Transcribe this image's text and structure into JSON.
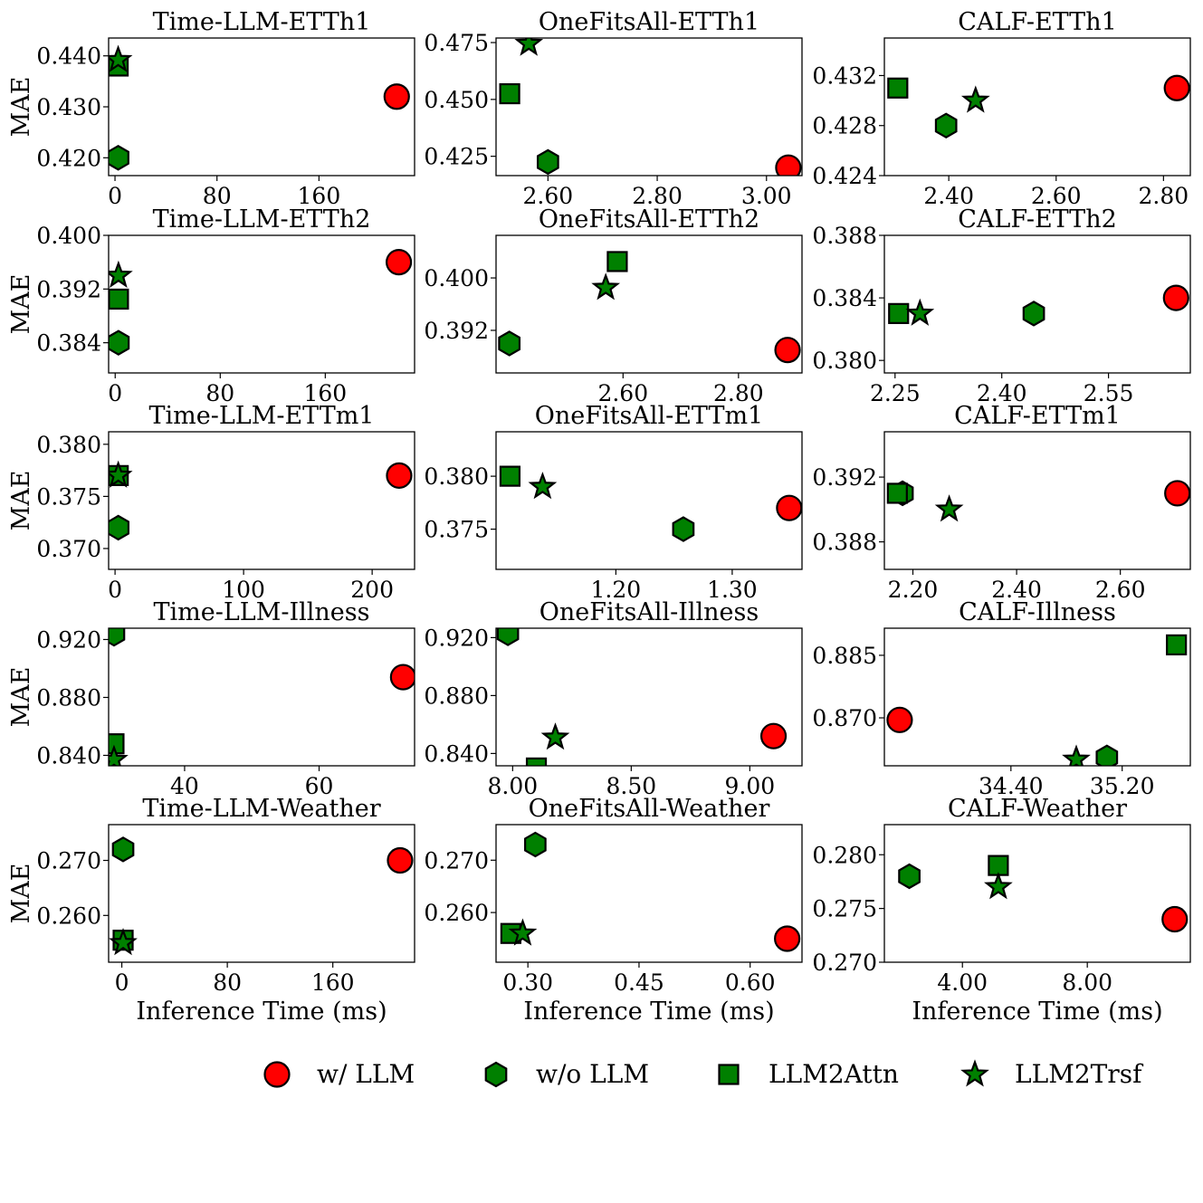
{
  "colors": {
    "with_llm": "#ff0000",
    "without_llm": "#008000",
    "llm2attn": "#008000",
    "llm2trsf": "#008000",
    "edge": "#000000"
  },
  "legend": {
    "placement": "bottom",
    "items": [
      {
        "label": "w/ LLM",
        "marker": "circle"
      },
      {
        "label": "w/o LLM",
        "marker": "hexagon"
      },
      {
        "label": "LLM2Attn",
        "marker": "square"
      },
      {
        "label": "LLM2Trsf",
        "marker": "star"
      }
    ]
  },
  "chart_data": [
    {
      "type": "scatter",
      "title": "Time-LLM-ETTh1",
      "ylabel": "MAE",
      "xlabel": "",
      "xlim": [
        -5,
        235
      ],
      "ylim": [
        0.4165,
        0.4435
      ],
      "xticks": [
        0,
        80,
        160
      ],
      "xtick_labels": [
        "0",
        "80",
        "160"
      ],
      "yticks": [
        0.42,
        0.43,
        0.44
      ],
      "ytick_labels": [
        "0.420",
        "0.430",
        "0.440"
      ],
      "points": [
        {
          "series": "w/ LLM",
          "x": 221,
          "y": 0.432
        },
        {
          "series": "w/o LLM",
          "x": 2.5,
          "y": 0.42
        },
        {
          "series": "LLM2Attn",
          "x": 2.5,
          "y": 0.438
        },
        {
          "series": "LLM2Trsf",
          "x": 2.5,
          "y": 0.4392
        }
      ]
    },
    {
      "type": "scatter",
      "title": "OneFitsAll-ETTh1",
      "ylabel": "",
      "xlabel": "",
      "xlim": [
        2.505,
        3.065
      ],
      "ylim": [
        0.4165,
        0.477
      ],
      "xticks": [
        2.6,
        2.8,
        3.0
      ],
      "xtick_labels": [
        "2.60",
        "2.80",
        "3.00"
      ],
      "yticks": [
        0.425,
        0.45,
        0.475
      ],
      "ytick_labels": [
        "0.425",
        "0.450",
        "0.475"
      ],
      "points": [
        {
          "series": "w/ LLM",
          "x": 3.04,
          "y": 0.42
        },
        {
          "series": "w/o LLM",
          "x": 2.6,
          "y": 0.4225
        },
        {
          "series": "LLM2Attn",
          "x": 2.53,
          "y": 0.4525
        },
        {
          "series": "LLM2Trsf",
          "x": 2.565,
          "y": 0.4745
        }
      ]
    },
    {
      "type": "scatter",
      "title": "CALF-ETTh1",
      "ylabel": "",
      "xlabel": "",
      "xlim": [
        2.28,
        2.85
      ],
      "ylim": [
        0.424,
        0.435
      ],
      "xticks": [
        2.4,
        2.6,
        2.8
      ],
      "xtick_labels": [
        "2.40",
        "2.60",
        "2.80"
      ],
      "yticks": [
        0.424,
        0.428,
        0.432
      ],
      "ytick_labels": [
        "0.424",
        "0.428",
        "0.432"
      ],
      "points": [
        {
          "series": "w/ LLM",
          "x": 2.825,
          "y": 0.431
        },
        {
          "series": "w/o LLM",
          "x": 2.395,
          "y": 0.428
        },
        {
          "series": "LLM2Attn",
          "x": 2.305,
          "y": 0.431
        },
        {
          "series": "LLM2Trsf",
          "x": 2.45,
          "y": 0.43
        }
      ]
    },
    {
      "type": "scatter",
      "title": "Time-LLM-ETTh2",
      "ylabel": "MAE",
      "xlabel": "",
      "xlim": [
        -5,
        228
      ],
      "ylim": [
        0.3795,
        0.4
      ],
      "xticks": [
        0,
        80,
        160
      ],
      "xtick_labels": [
        "0",
        "80",
        "160"
      ],
      "yticks": [
        0.384,
        0.392,
        0.4
      ],
      "ytick_labels": [
        "0.384",
        "0.392",
        "0.400"
      ],
      "points": [
        {
          "series": "w/ LLM",
          "x": 216,
          "y": 0.396
        },
        {
          "series": "w/o LLM",
          "x": 2.5,
          "y": 0.384
        },
        {
          "series": "LLM2Attn",
          "x": 2.5,
          "y": 0.3905
        },
        {
          "series": "LLM2Trsf",
          "x": 2.5,
          "y": 0.394
        }
      ]
    },
    {
      "type": "scatter",
      "title": "OneFitsAll-ETTh2",
      "ylabel": "",
      "xlabel": "",
      "xlim": [
        2.38,
        2.91
      ],
      "ylim": [
        0.3855,
        0.4065
      ],
      "xticks": [
        2.6,
        2.8
      ],
      "xtick_labels": [
        "2.60",
        "2.80"
      ],
      "yticks": [
        0.392,
        0.4
      ],
      "ytick_labels": [
        "0.392",
        "0.400"
      ],
      "points": [
        {
          "series": "w/ LLM",
          "x": 2.885,
          "y": 0.389
        },
        {
          "series": "w/o LLM",
          "x": 2.403,
          "y": 0.39
        },
        {
          "series": "LLM2Attn",
          "x": 2.59,
          "y": 0.4025
        },
        {
          "series": "LLM2Trsf",
          "x": 2.57,
          "y": 0.3985
        }
      ]
    },
    {
      "type": "scatter",
      "title": "CALF-ETTh2",
      "ylabel": "",
      "xlabel": "",
      "xlim": [
        2.235,
        2.665
      ],
      "ylim": [
        0.3792,
        0.388
      ],
      "xticks": [
        2.25,
        2.4,
        2.55
      ],
      "xtick_labels": [
        "2.25",
        "2.40",
        "2.55"
      ],
      "yticks": [
        0.38,
        0.384,
        0.388
      ],
      "ytick_labels": [
        "0.380",
        "0.384",
        "0.388"
      ],
      "points": [
        {
          "series": "w/ LLM",
          "x": 2.645,
          "y": 0.384
        },
        {
          "series": "w/o LLM",
          "x": 2.445,
          "y": 0.383
        },
        {
          "series": "LLM2Attn",
          "x": 2.255,
          "y": 0.383
        },
        {
          "series": "LLM2Trsf",
          "x": 2.285,
          "y": 0.383
        }
      ]
    },
    {
      "type": "scatter",
      "title": "Time-LLM-ETTm1",
      "ylabel": "MAE",
      "xlabel": "",
      "xlim": [
        -5,
        233
      ],
      "ylim": [
        0.368,
        0.3812
      ],
      "xticks": [
        0,
        100,
        200
      ],
      "xtick_labels": [
        "0",
        "100",
        "200"
      ],
      "yticks": [
        0.37,
        0.375,
        0.38
      ],
      "ytick_labels": [
        "0.370",
        "0.375",
        "0.380"
      ],
      "points": [
        {
          "series": "w/ LLM",
          "x": 221,
          "y": 0.377
        },
        {
          "series": "w/o LLM",
          "x": 2.5,
          "y": 0.372
        },
        {
          "series": "LLM2Attn",
          "x": 2.5,
          "y": 0.377
        },
        {
          "series": "LLM2Trsf",
          "x": 2.5,
          "y": 0.377
        }
      ]
    },
    {
      "type": "scatter",
      "title": "OneFitsAll-ETTm1",
      "ylabel": "",
      "xlabel": "",
      "xlim": [
        1.097,
        1.36
      ],
      "ylim": [
        0.3712,
        0.3842
      ],
      "xticks": [
        1.2,
        1.3
      ],
      "xtick_labels": [
        "1.20",
        "1.30"
      ],
      "yticks": [
        0.375,
        0.38
      ],
      "ytick_labels": [
        "0.375",
        "0.380"
      ],
      "points": [
        {
          "series": "w/ LLM",
          "x": 1.349,
          "y": 0.377
        },
        {
          "series": "w/o LLM",
          "x": 1.258,
          "y": 0.375
        },
        {
          "series": "LLM2Attn",
          "x": 1.109,
          "y": 0.38
        },
        {
          "series": "LLM2Trsf",
          "x": 1.137,
          "y": 0.379
        }
      ]
    },
    {
      "type": "scatter",
      "title": "CALF-ETTm1",
      "ylabel": "",
      "xlabel": "",
      "xlim": [
        2.145,
        2.735
      ],
      "ylim": [
        0.3863,
        0.3948
      ],
      "xticks": [
        2.2,
        2.4,
        2.6
      ],
      "xtick_labels": [
        "2.20",
        "2.40",
        "2.60"
      ],
      "yticks": [
        0.388,
        0.392
      ],
      "ytick_labels": [
        "0.388",
        "0.392"
      ],
      "points": [
        {
          "series": "w/ LLM",
          "x": 2.71,
          "y": 0.391
        },
        {
          "series": "w/o LLM",
          "x": 2.18,
          "y": 0.391
        },
        {
          "series": "LLM2Attn",
          "x": 2.17,
          "y": 0.391
        },
        {
          "series": "LLM2Trsf",
          "x": 2.27,
          "y": 0.39
        }
      ]
    },
    {
      "type": "scatter",
      "title": "Time-LLM-Illness",
      "ylabel": "MAE",
      "xlabel": "",
      "xlim": [
        28.7,
        74.2
      ],
      "ylim": [
        0.8328,
        0.9278
      ],
      "xticks": [
        40,
        60
      ],
      "xtick_labels": [
        "40",
        "60"
      ],
      "yticks": [
        0.84,
        0.88,
        0.92
      ],
      "ytick_labels": [
        "0.840",
        "0.880",
        "0.920"
      ],
      "points": [
        {
          "series": "w/ LLM",
          "x": 72.5,
          "y": 0.894
        },
        {
          "series": "w/o LLM",
          "x": 29.5,
          "y": 0.924
        },
        {
          "series": "LLM2Attn",
          "x": 29.5,
          "y": 0.848
        },
        {
          "series": "LLM2Trsf",
          "x": 29.5,
          "y": 0.837
        }
      ]
    },
    {
      "type": "scatter",
      "title": "OneFitsAll-Illness",
      "ylabel": "",
      "xlabel": "",
      "xlim": [
        7.93,
        9.22
      ],
      "ylim": [
        0.8315,
        0.9265
      ],
      "xticks": [
        8.0,
        8.5,
        9.0
      ],
      "xtick_labels": [
        "8.00",
        "8.50",
        "9.00"
      ],
      "yticks": [
        0.84,
        0.88,
        0.92
      ],
      "ytick_labels": [
        "0.840",
        "0.880",
        "0.920"
      ],
      "points": [
        {
          "series": "w/ LLM",
          "x": 9.1,
          "y": 0.852
        },
        {
          "series": "w/o LLM",
          "x": 7.98,
          "y": 0.923
        },
        {
          "series": "LLM2Attn",
          "x": 8.1,
          "y": 0.83
        },
        {
          "series": "LLM2Trsf",
          "x": 8.18,
          "y": 0.851
        }
      ]
    },
    {
      "type": "scatter",
      "title": "CALF-Illness",
      "ylabel": "",
      "xlabel": "",
      "xlim": [
        33.49,
        35.69
      ],
      "ylim": [
        0.8585,
        0.8915
      ],
      "xticks": [
        34.4,
        35.2
      ],
      "xtick_labels": [
        "34.40",
        "35.20"
      ],
      "yticks": [
        0.87,
        0.885
      ],
      "ytick_labels": [
        "0.870",
        "0.885"
      ],
      "points": [
        {
          "series": "w/ LLM",
          "x": 33.6,
          "y": 0.8695
        },
        {
          "series": "w/o LLM",
          "x": 35.09,
          "y": 0.8605
        },
        {
          "series": "LLM2Attn",
          "x": 35.59,
          "y": 0.8875
        },
        {
          "series": "LLM2Trsf",
          "x": 34.87,
          "y": 0.86
        }
      ]
    },
    {
      "type": "scatter",
      "title": "Time-LLM-Weather",
      "ylabel": "MAE",
      "xlabel": "Inference Time (ms)",
      "xlim": [
        -10,
        222
      ],
      "ylim": [
        0.2515,
        0.2765
      ],
      "xticks": [
        0,
        80,
        160
      ],
      "xtick_labels": [
        "0",
        "80",
        "160"
      ],
      "yticks": [
        0.26,
        0.27
      ],
      "ytick_labels": [
        "0.260",
        "0.270"
      ],
      "points": [
        {
          "series": "w/ LLM",
          "x": 211,
          "y": 0.27
        },
        {
          "series": "w/o LLM",
          "x": 1,
          "y": 0.272
        },
        {
          "series": "LLM2Attn",
          "x": 1,
          "y": 0.2555
        },
        {
          "series": "LLM2Trsf",
          "x": 1,
          "y": 0.255
        }
      ]
    },
    {
      "type": "scatter",
      "title": "OneFitsAll-Weather",
      "ylabel": "",
      "xlabel": "Inference Time (ms)",
      "xlim": [
        0.257,
        0.67
      ],
      "ylim": [
        0.2505,
        0.2768
      ],
      "xticks": [
        0.3,
        0.45,
        0.6
      ],
      "xtick_labels": [
        "0.30",
        "0.45",
        "0.60"
      ],
      "yticks": [
        0.26,
        0.27
      ],
      "ytick_labels": [
        "0.260",
        "0.270"
      ],
      "points": [
        {
          "series": "w/ LLM",
          "x": 0.65,
          "y": 0.255
        },
        {
          "series": "w/o LLM",
          "x": 0.31,
          "y": 0.273
        },
        {
          "series": "LLM2Attn",
          "x": 0.277,
          "y": 0.256
        },
        {
          "series": "LLM2Trsf",
          "x": 0.293,
          "y": 0.256
        }
      ]
    },
    {
      "type": "scatter",
      "title": "CALF-Weather",
      "ylabel": "",
      "xlabel": "Inference Time (ms)",
      "xlim": [
        1.5,
        11.3
      ],
      "ylim": [
        0.27,
        0.2828
      ],
      "xticks": [
        4,
        8
      ],
      "xtick_labels": [
        "4.00",
        "8.00"
      ],
      "yticks": [
        0.27,
        0.275,
        0.28
      ],
      "ytick_labels": [
        "0.270",
        "0.275",
        "0.280"
      ],
      "points": [
        {
          "series": "w/ LLM",
          "x": 10.8,
          "y": 0.274
        },
        {
          "series": "w/o LLM",
          "x": 2.3,
          "y": 0.278
        },
        {
          "series": "LLM2Attn",
          "x": 5.15,
          "y": 0.279
        },
        {
          "series": "LLM2Trsf",
          "x": 5.15,
          "y": 0.277
        }
      ]
    }
  ]
}
